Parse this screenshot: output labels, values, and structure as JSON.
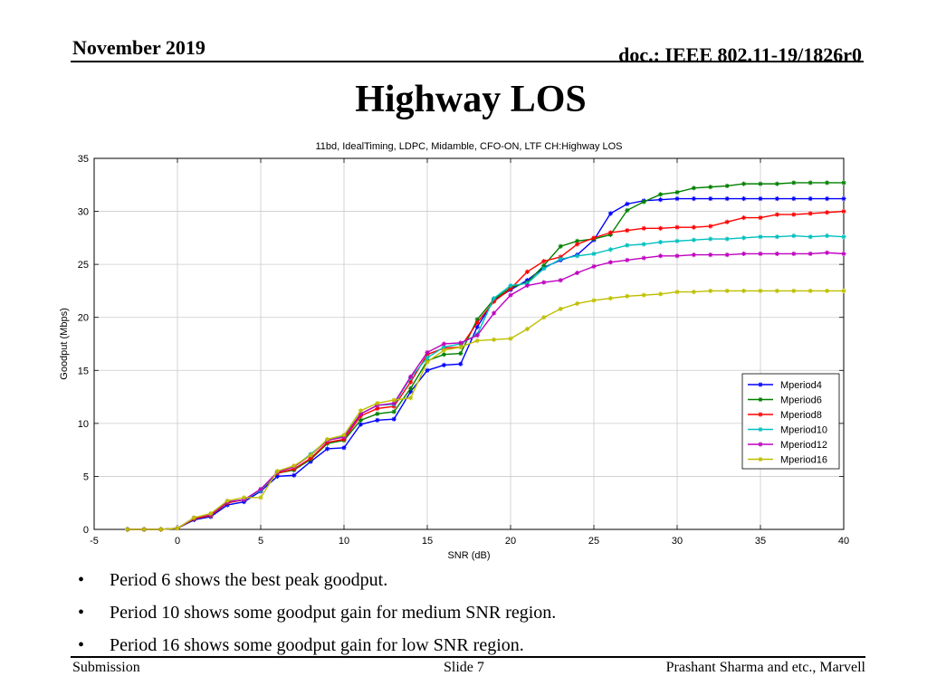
{
  "header": {
    "date": "November 2019",
    "doc": "doc.: IEEE 802.11-19/1826r0"
  },
  "slide_title": "Highway LOS",
  "chart_data": {
    "type": "line",
    "title": "11bd, IdealTiming, LDPC, Midamble, CFO-ON, LTF CH:Highway LOS",
    "xlabel": "SNR (dB)",
    "ylabel": "Goodput (Mbps)",
    "xlim": [
      -5,
      40
    ],
    "ylim": [
      0,
      35
    ],
    "xticks": [
      -5,
      0,
      5,
      10,
      15,
      20,
      25,
      30,
      35,
      40
    ],
    "yticks": [
      0,
      5,
      10,
      15,
      20,
      25,
      30,
      35
    ],
    "grid": true,
    "legend_position": "right-middle",
    "x": [
      -3,
      -2,
      -1,
      0,
      1,
      2,
      3,
      4,
      5,
      6,
      7,
      8,
      9,
      10,
      11,
      12,
      13,
      14,
      15,
      16,
      17,
      18,
      19,
      20,
      21,
      22,
      23,
      24,
      25,
      26,
      27,
      28,
      29,
      30,
      31,
      32,
      33,
      34,
      35,
      36,
      37,
      38,
      39,
      40
    ],
    "series": [
      {
        "name": "Mperiod4",
        "color": "#0000ff",
        "values": [
          0,
          0,
          0,
          0.1,
          0.9,
          1.2,
          2.3,
          2.6,
          3.6,
          5.0,
          5.1,
          6.4,
          7.6,
          7.7,
          9.9,
          10.3,
          10.4,
          13.0,
          15.0,
          15.5,
          15.6,
          19.1,
          21.6,
          22.6,
          23.5,
          24.7,
          25.4,
          25.9,
          27.3,
          29.8,
          30.7,
          31.0,
          31.1,
          31.2,
          31.2,
          31.2,
          31.2,
          31.2,
          31.2,
          31.2,
          31.2,
          31.2,
          31.2,
          31.2
        ]
      },
      {
        "name": "Mperiod6",
        "color": "#008000",
        "values": [
          0,
          0,
          0,
          0.1,
          1.0,
          1.3,
          2.5,
          2.8,
          3.7,
          5.3,
          5.6,
          6.6,
          8.1,
          8.4,
          10.3,
          10.9,
          11.1,
          13.3,
          15.9,
          16.5,
          16.6,
          19.8,
          21.7,
          22.8,
          23.3,
          24.9,
          26.7,
          27.2,
          27.4,
          27.8,
          30.1,
          30.9,
          31.6,
          31.8,
          32.2,
          32.3,
          32.4,
          32.6,
          32.6,
          32.6,
          32.7,
          32.7,
          32.7,
          32.7
        ]
      },
      {
        "name": "Mperiod8",
        "color": "#ff0000",
        "values": [
          0,
          0,
          0,
          0.1,
          1.0,
          1.3,
          2.5,
          2.8,
          3.7,
          5.3,
          5.7,
          6.7,
          8.2,
          8.5,
          10.7,
          11.4,
          11.6,
          13.9,
          16.5,
          17.1,
          17.2,
          19.5,
          21.5,
          22.7,
          24.3,
          25.3,
          25.7,
          26.9,
          27.5,
          28.0,
          28.2,
          28.4,
          28.4,
          28.5,
          28.5,
          28.6,
          29.0,
          29.4,
          29.4,
          29.7,
          29.7,
          29.8,
          29.9,
          30.0
        ]
      },
      {
        "name": "Mperiod10",
        "color": "#00bfbf",
        "values": [
          0,
          0,
          0,
          0.1,
          1.1,
          1.4,
          2.6,
          2.8,
          3.7,
          5.4,
          5.9,
          7.1,
          8.4,
          8.8,
          10.9,
          11.7,
          11.8,
          14.3,
          16.2,
          17.2,
          17.5,
          18.4,
          21.8,
          23.0,
          23.2,
          24.6,
          25.5,
          25.8,
          26.0,
          26.4,
          26.8,
          26.9,
          27.1,
          27.2,
          27.3,
          27.4,
          27.4,
          27.5,
          27.6,
          27.6,
          27.7,
          27.6,
          27.7,
          27.6
        ]
      },
      {
        "name": "Mperiod12",
        "color": "#bf00bf",
        "values": [
          0,
          0,
          0,
          0.1,
          1.1,
          1.4,
          2.6,
          2.8,
          3.8,
          5.4,
          5.9,
          7.0,
          8.4,
          8.7,
          10.9,
          11.7,
          11.9,
          14.4,
          16.7,
          17.5,
          17.6,
          18.3,
          20.4,
          22.1,
          23.0,
          23.3,
          23.5,
          24.2,
          24.8,
          25.2,
          25.4,
          25.6,
          25.8,
          25.8,
          25.9,
          25.9,
          25.9,
          26.0,
          26.0,
          26.0,
          26.0,
          26.0,
          26.1,
          26.0
        ]
      },
      {
        "name": "Mperiod16",
        "color": "#bfbf00",
        "values": [
          0,
          0,
          0,
          0.1,
          1.1,
          1.5,
          2.7,
          3.0,
          3.0,
          5.5,
          6.0,
          7.0,
          8.5,
          8.9,
          11.2,
          11.9,
          12.2,
          12.4,
          15.8,
          16.9,
          17.2,
          17.8,
          17.9,
          18.0,
          18.9,
          20.0,
          20.8,
          21.3,
          21.6,
          21.8,
          22.0,
          22.1,
          22.2,
          22.4,
          22.4,
          22.5,
          22.5,
          22.5,
          22.5,
          22.5,
          22.5,
          22.5,
          22.5,
          22.5
        ]
      }
    ]
  },
  "bullets": [
    {
      "symbol": "•",
      "text": "Period 6 shows the best peak goodput."
    },
    {
      "symbol": "•",
      "text": "Period 10 shows some goodput gain for medium SNR region."
    },
    {
      "symbol": "•",
      "text": "Period 16 shows some goodput gain for low SNR region."
    }
  ],
  "footer": {
    "left": "Submission",
    "center": "Slide 7",
    "right": "Prashant Sharma and etc., Marvell"
  }
}
